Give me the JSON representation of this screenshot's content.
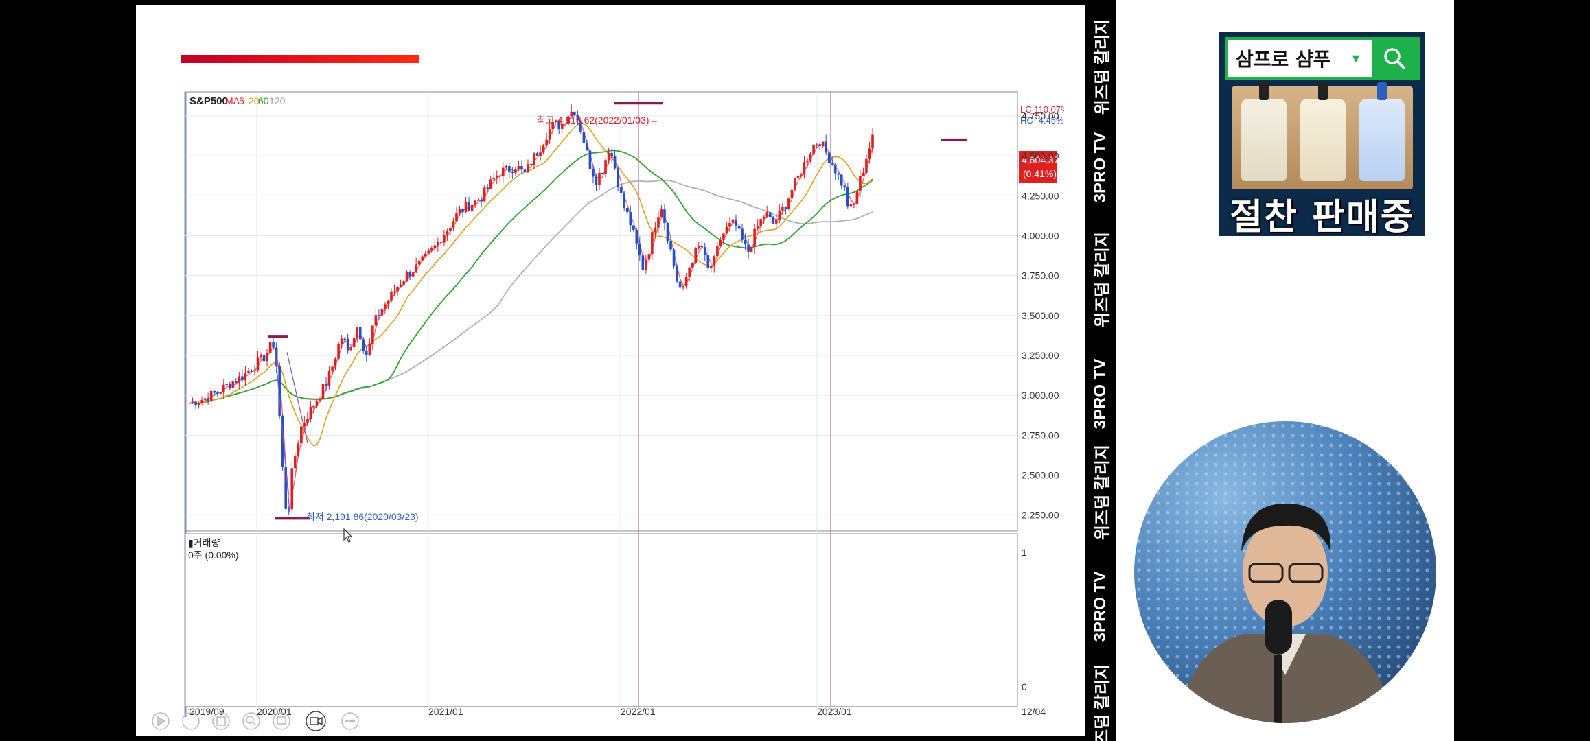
{
  "chart_data": {
    "type": "candlestick",
    "title": "S&P500",
    "ma_labels": [
      "MA",
      "5",
      "20",
      "60",
      "120"
    ],
    "ma_colors": {
      "MA": "#e02020",
      "5": "#e02020",
      "20": "#e0a020",
      "60": "#30a030",
      "120": "#a0a0a0"
    },
    "x_ticks": [
      "2019/09",
      "2020/01",
      "2021/01",
      "2022/01",
      "2023/01",
      "12/04"
    ],
    "y_ticks": [
      "4,750.00",
      "4,500.00",
      "4,250.00",
      "4,000.00",
      "3,750.00",
      "3,500.00",
      "3,250.00",
      "3,000.00",
      "2,750.00",
      "2,500.00",
      "2,250.00"
    ],
    "ylim": [
      2150,
      4900
    ],
    "annotations": {
      "high": "최고 4,818.62(2022/01/03)→",
      "low": "←최저 2,191.86(2020/03/23)"
    },
    "price_label": "4,604.37",
    "change_label": "(0.41%)",
    "lc_label": "LC 110.07%",
    "hc_label": "HC  -4.45%",
    "volume_title": "▮거래량",
    "volume_value": "0주 (0.00%)",
    "volume_ticks": [
      "1",
      "0"
    ],
    "close_path": [
      [
        0,
        2950
      ],
      [
        18,
        2980
      ],
      [
        34,
        3020
      ],
      [
        50,
        3080
      ],
      [
        64,
        3120
      ],
      [
        76,
        3180
      ],
      [
        88,
        3230
      ],
      [
        96,
        3290
      ],
      [
        100,
        3340
      ],
      [
        104,
        3220
      ],
      [
        110,
        2700
      ],
      [
        114,
        2350
      ],
      [
        118,
        2230
      ],
      [
        122,
        2480
      ],
      [
        128,
        2660
      ],
      [
        134,
        2800
      ],
      [
        142,
        2880
      ],
      [
        150,
        2950
      ],
      [
        158,
        3020
      ],
      [
        166,
        3100
      ],
      [
        172,
        3190
      ],
      [
        178,
        3300
      ],
      [
        184,
        3380
      ],
      [
        190,
        3270
      ],
      [
        196,
        3360
      ],
      [
        202,
        3440
      ],
      [
        208,
        3320
      ],
      [
        214,
        3240
      ],
      [
        220,
        3430
      ],
      [
        228,
        3520
      ],
      [
        236,
        3580
      ],
      [
        244,
        3640
      ],
      [
        252,
        3700
      ],
      [
        262,
        3760
      ],
      [
        272,
        3800
      ],
      [
        282,
        3850
      ],
      [
        292,
        3910
      ],
      [
        302,
        3990
      ],
      [
        312,
        4060
      ],
      [
        322,
        4140
      ],
      [
        332,
        4180
      ],
      [
        342,
        4210
      ],
      [
        352,
        4250
      ],
      [
        362,
        4330
      ],
      [
        372,
        4400
      ],
      [
        382,
        4410
      ],
      [
        392,
        4440
      ],
      [
        402,
        4380
      ],
      [
        412,
        4480
      ],
      [
        422,
        4560
      ],
      [
        430,
        4650
      ],
      [
        438,
        4700
      ],
      [
        446,
        4690
      ],
      [
        454,
        4760
      ],
      [
        462,
        4790
      ],
      [
        468,
        4700
      ],
      [
        474,
        4580
      ],
      [
        480,
        4450
      ],
      [
        488,
        4350
      ],
      [
        496,
        4420
      ],
      [
        504,
        4560
      ],
      [
        512,
        4400
      ],
      [
        520,
        4200
      ],
      [
        528,
        4100
      ],
      [
        536,
        3950
      ],
      [
        544,
        3800
      ],
      [
        552,
        3920
      ],
      [
        560,
        4100
      ],
      [
        566,
        4200
      ],
      [
        572,
        4050
      ],
      [
        580,
        3850
      ],
      [
        586,
        3700
      ],
      [
        592,
        3640
      ],
      [
        598,
        3780
      ],
      [
        606,
        3880
      ],
      [
        614,
        3950
      ],
      [
        622,
        3780
      ],
      [
        630,
        3840
      ],
      [
        638,
        3990
      ],
      [
        646,
        4050
      ],
      [
        654,
        4080
      ],
      [
        662,
        3980
      ],
      [
        670,
        3890
      ],
      [
        676,
        3980
      ],
      [
        684,
        4080
      ],
      [
        692,
        4140
      ],
      [
        700,
        4070
      ],
      [
        708,
        4130
      ],
      [
        716,
        4200
      ],
      [
        724,
        4300
      ],
      [
        732,
        4380
      ],
      [
        740,
        4470
      ],
      [
        748,
        4560
      ],
      [
        756,
        4600
      ],
      [
        764,
        4520
      ],
      [
        772,
        4450
      ],
      [
        780,
        4360
      ],
      [
        786,
        4300
      ],
      [
        790,
        4200
      ],
      [
        796,
        4150
      ],
      [
        802,
        4300
      ],
      [
        808,
        4400
      ],
      [
        814,
        4520
      ],
      [
        820,
        4604
      ]
    ]
  }
}
